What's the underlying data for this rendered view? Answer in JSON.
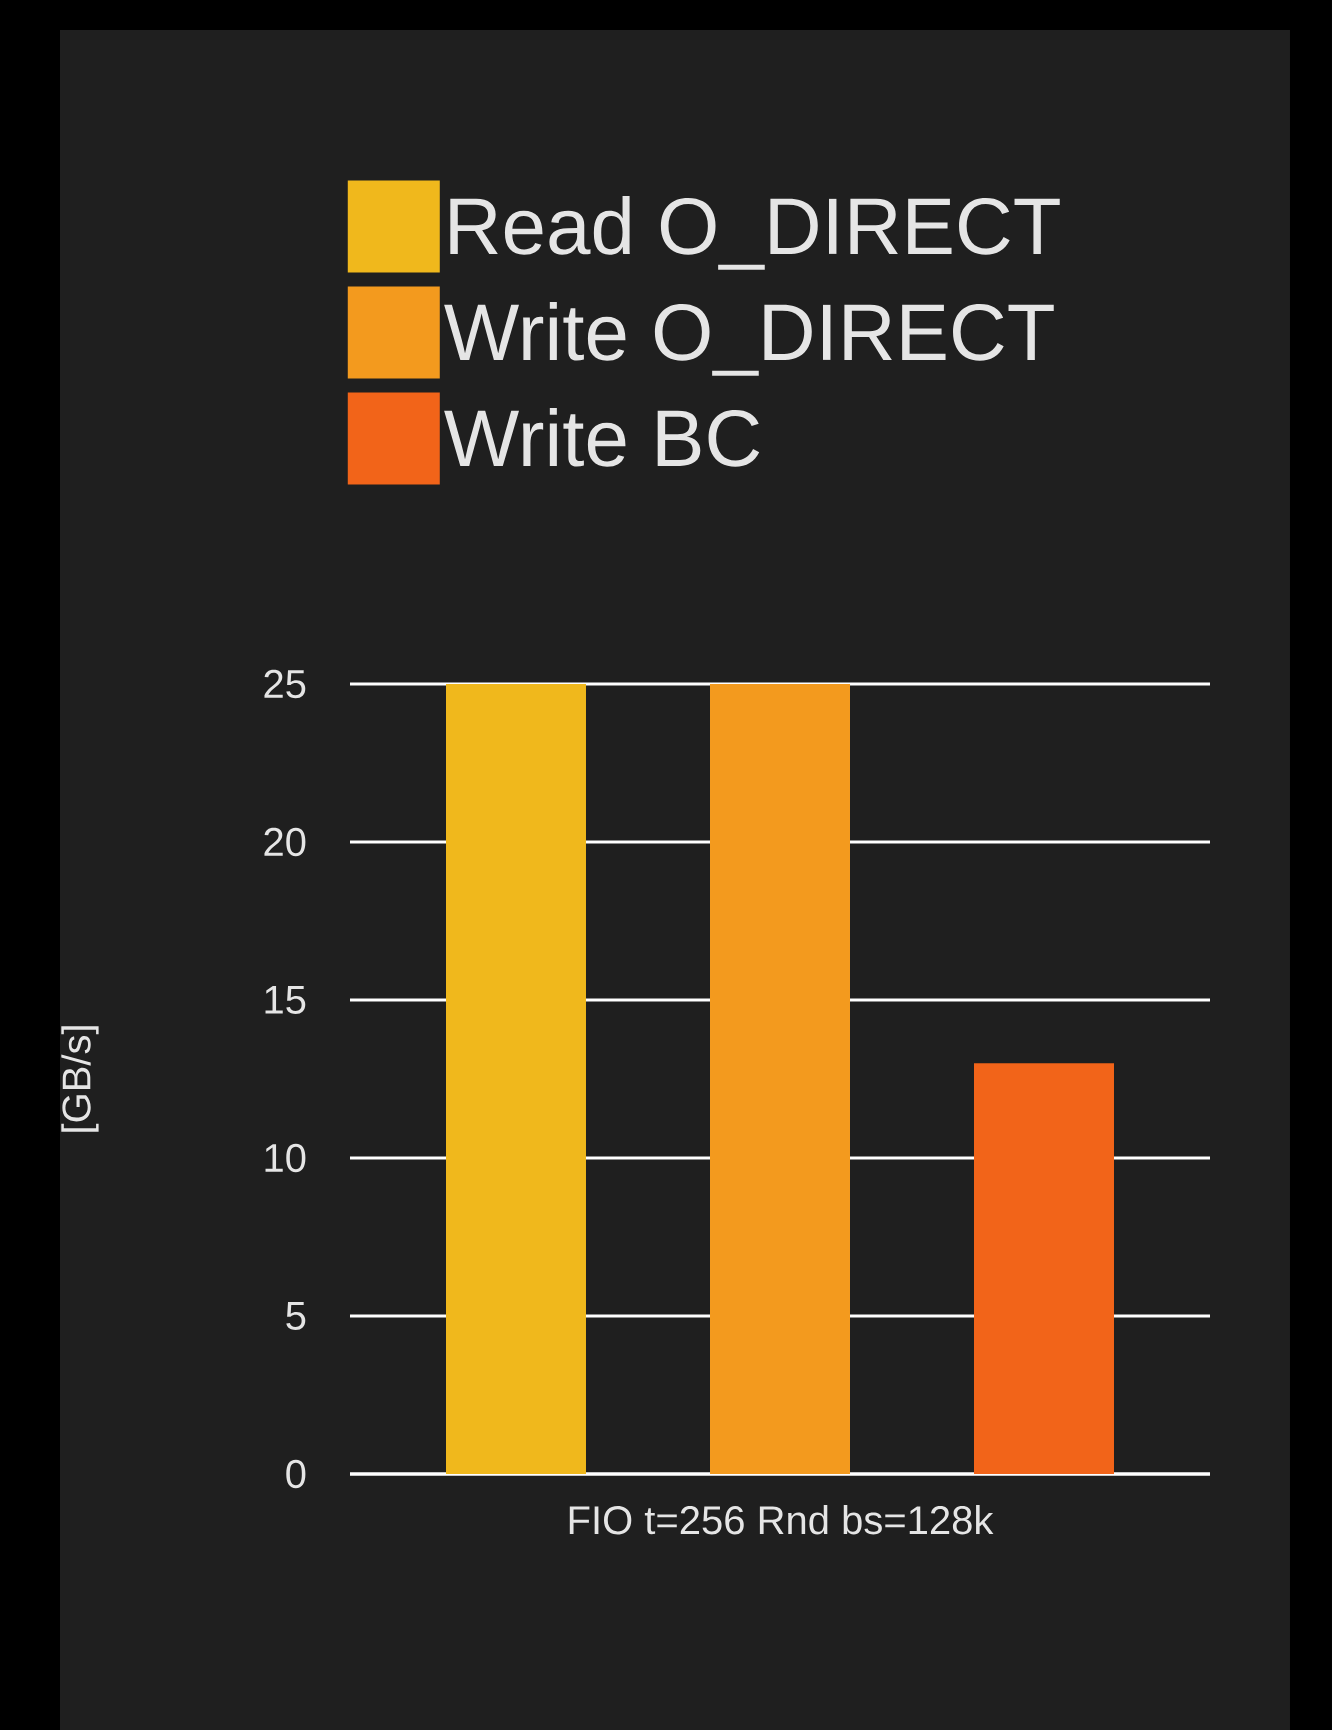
{
  "chart_data": {
    "type": "bar",
    "categories": [
      "FIO t=256 Rnd bs=128k"
    ],
    "series": [
      {
        "name": "Read O_DIRECT",
        "color": "#f0b81c",
        "values": [
          25
        ]
      },
      {
        "name": "Write O_DIRECT",
        "color": "#f39a1e",
        "values": [
          25
        ]
      },
      {
        "name": "Write BC",
        "color": "#f26419",
        "values": [
          13
        ]
      }
    ],
    "ylabel": "[GB/s]",
    "ylim": [
      0,
      25
    ],
    "yticks": [
      0,
      5,
      10,
      15,
      20,
      25
    ],
    "grid": "y",
    "legend": "top"
  }
}
